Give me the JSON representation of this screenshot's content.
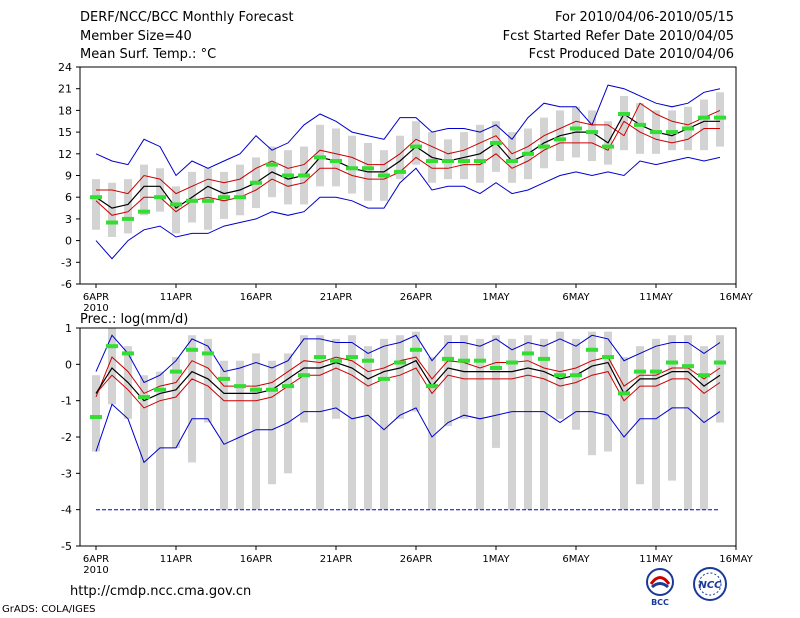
{
  "header": {
    "title": "DERF/NCC/BCC Monthly Forecast",
    "member_size": "Member Size=40",
    "variable": "Mean Surf. Temp.: °C",
    "period": "For 2010/04/06-2010/05/15",
    "started_refer": "Fcst Started Refer Date 2010/04/05",
    "produced": "Fcst Produced Date 2010/04/06"
  },
  "footer": {
    "url": "http://cmdp.ncc.cma.gov.cn",
    "credit": "GrADS: COLA/IGES",
    "logo_left_text": "BCC",
    "logo_right_text": "NCC"
  },
  "colors": {
    "envelope": "#0000cc",
    "spread": "#cc0000",
    "mean": "#000000",
    "median": "#33dd33",
    "bar": "#d3d3d3"
  },
  "chart_data": [
    {
      "type": "line",
      "title": "Mean Surf. Temp.: °C",
      "x_tick_labels": [
        "6APR",
        "11APR",
        "16APR",
        "21APR",
        "26APR",
        "1MAY",
        "6MAY",
        "11MAY",
        "16MAY"
      ],
      "x_tick_days": [
        0,
        5,
        10,
        15,
        20,
        25,
        30,
        35,
        40
      ],
      "year_label": "2010",
      "ylim": [
        -6,
        24
      ],
      "yticks": [
        -6,
        -3,
        0,
        3,
        6,
        9,
        12,
        15,
        18,
        21,
        24
      ],
      "series": [
        {
          "name": "max",
          "values": [
            12,
            11,
            10.5,
            14,
            13,
            9,
            11,
            10,
            11,
            12,
            14.5,
            12.5,
            13.5,
            16,
            17.5,
            16.5,
            15,
            14.5,
            14,
            17,
            17,
            15,
            15.5,
            15.5,
            15,
            16,
            14,
            17,
            19,
            18.5,
            18.5,
            16,
            21.5,
            21,
            20,
            19,
            18.5,
            19,
            20.5,
            21
          ]
        },
        {
          "name": "upper",
          "values": [
            7,
            7,
            6.5,
            9,
            8.5,
            6.5,
            7.5,
            8.5,
            8,
            8.5,
            10,
            11,
            10,
            10.5,
            12.5,
            12,
            11.5,
            10.5,
            10.5,
            12,
            14,
            13,
            12,
            12.5,
            13.5,
            14.5,
            12,
            13,
            14.5,
            15.5,
            16.5,
            16,
            16,
            14.5,
            19,
            17.5,
            16.5,
            16,
            17,
            18
          ]
        },
        {
          "name": "mean",
          "values": [
            6,
            4.5,
            5,
            7.5,
            7.5,
            4.5,
            6,
            7.5,
            6.5,
            7,
            8,
            9.5,
            8.5,
            9,
            11.5,
            11,
            10,
            9.5,
            9.5,
            11,
            13,
            11.5,
            11,
            11.5,
            12,
            13.5,
            11,
            12,
            13.5,
            14.5,
            15,
            15,
            13.5,
            17.5,
            16,
            15,
            14.5,
            15.5,
            16.5,
            16.5
          ]
        },
        {
          "name": "lower",
          "values": [
            5.5,
            3.5,
            4,
            6,
            6,
            4,
            5.5,
            6,
            5.5,
            6,
            7,
            8.5,
            7.5,
            8,
            10,
            10,
            9,
            8.5,
            8.5,
            9.5,
            11.5,
            10,
            10,
            10.5,
            10.5,
            12,
            10,
            11,
            12.5,
            13.5,
            13.5,
            13.5,
            12.5,
            16.5,
            15,
            14,
            13.5,
            14,
            15.5,
            15.5
          ]
        },
        {
          "name": "min",
          "values": [
            0,
            -2.5,
            0,
            1.5,
            2,
            0.5,
            1,
            1,
            2,
            2.5,
            3,
            4,
            3.5,
            4,
            6,
            6,
            5.5,
            4.5,
            4.5,
            8,
            10,
            7,
            7.5,
            7.5,
            6.5,
            8,
            6.5,
            7,
            8,
            9,
            9.5,
            9,
            9.5,
            9,
            11,
            10.5,
            11,
            11.5,
            11,
            11.5
          ]
        },
        {
          "name": "median",
          "values": [
            6,
            2.5,
            3,
            4,
            6,
            5,
            5.5,
            5.5,
            6,
            6,
            8,
            10.5,
            9,
            9,
            11.5,
            11,
            10,
            10,
            9,
            9.5,
            13,
            11,
            11,
            11,
            11,
            13.5,
            11,
            12,
            13,
            14,
            15.5,
            15,
            13,
            17.5,
            16,
            15,
            15,
            15.5,
            17,
            17
          ]
        },
        {
          "name": "bar_top",
          "values": [
            8.5,
            8,
            8.5,
            10.5,
            10,
            7.5,
            9.5,
            10,
            9.5,
            10.5,
            11.5,
            13,
            12.5,
            13,
            16,
            15.5,
            14.5,
            13.5,
            12.5,
            14.5,
            16.5,
            15,
            14,
            15,
            16,
            16.5,
            15,
            15.5,
            17,
            18,
            18.5,
            18,
            16.5,
            20,
            19,
            18,
            18,
            18.5,
            19.5,
            20.5
          ]
        },
        {
          "name": "bar_bottom",
          "values": [
            1.5,
            0.5,
            1,
            3.5,
            4,
            1,
            2.5,
            1.5,
            3,
            3.5,
            4.5,
            6,
            5,
            5,
            7.5,
            7.5,
            6.5,
            5.5,
            5.5,
            8.5,
            10.5,
            8,
            8.5,
            8.5,
            8,
            9.5,
            8,
            8.5,
            10,
            11,
            11.5,
            11,
            10.5,
            12.5,
            12,
            12,
            12.5,
            12.5,
            12.5,
            13
          ]
        }
      ]
    },
    {
      "type": "line",
      "title": "Prec.: log(mm/d)",
      "x_tick_labels": [
        "6APR",
        "11APR",
        "16APR",
        "21APR",
        "26APR",
        "1MAY",
        "6MAY",
        "11MAY",
        "16MAY"
      ],
      "x_tick_days": [
        0,
        5,
        10,
        15,
        20,
        25,
        30,
        35,
        40
      ],
      "year_label": "2010",
      "ylim": [
        -5,
        1
      ],
      "yticks": [
        -5,
        -4,
        -3,
        -2,
        -1,
        0,
        1
      ],
      "series": [
        {
          "name": "max",
          "values": [
            -0.2,
            0.8,
            0.3,
            -0.5,
            -0.3,
            0.1,
            0.7,
            0.5,
            -0.2,
            -0.1,
            0.05,
            -0.1,
            0.1,
            0.7,
            0.7,
            0.6,
            0.6,
            0.3,
            0.5,
            0.6,
            0.8,
            0.1,
            0.6,
            0.6,
            0.5,
            0.7,
            0.4,
            0.6,
            0.5,
            0.7,
            0.5,
            0.8,
            0.7,
            0.1,
            0.3,
            0.5,
            0.6,
            0.6,
            0.3,
            0.6
          ]
        },
        {
          "name": "upper",
          "values": [
            -0.9,
            0.2,
            -0.2,
            -0.8,
            -0.6,
            -0.5,
            0.1,
            -0.1,
            -0.6,
            -0.6,
            -0.6,
            -0.5,
            -0.2,
            0.1,
            0.05,
            0.2,
            0.1,
            -0.2,
            -0.1,
            0.1,
            0.2,
            -0.4,
            0.1,
            0.05,
            -0.1,
            0.05,
            0.05,
            0.1,
            -0.1,
            -0.2,
            -0.1,
            0.1,
            0.2,
            -0.6,
            -0.3,
            -0.3,
            -0.1,
            -0.1,
            -0.4,
            -0.1
          ]
        },
        {
          "name": "mean",
          "values": [
            -0.8,
            -0.1,
            -0.5,
            -1.0,
            -0.8,
            -0.7,
            -0.2,
            -0.4,
            -0.8,
            -0.8,
            -0.8,
            -0.7,
            -0.4,
            -0.1,
            -0.1,
            0.05,
            -0.1,
            -0.4,
            -0.2,
            -0.1,
            0.1,
            -0.6,
            -0.1,
            -0.2,
            -0.2,
            -0.2,
            -0.2,
            -0.1,
            -0.2,
            -0.4,
            -0.3,
            -0.05,
            0.05,
            -0.8,
            -0.4,
            -0.4,
            -0.2,
            -0.2,
            -0.6,
            -0.3
          ]
        },
        {
          "name": "lower",
          "values": [
            -0.8,
            -0.3,
            -0.7,
            -1.2,
            -1.0,
            -0.9,
            -0.4,
            -0.6,
            -1.0,
            -1.0,
            -1.0,
            -0.9,
            -0.6,
            -0.3,
            -0.3,
            -0.1,
            -0.3,
            -0.6,
            -0.4,
            -0.3,
            -0.1,
            -0.8,
            -0.3,
            -0.4,
            -0.4,
            -0.4,
            -0.4,
            -0.3,
            -0.4,
            -0.6,
            -0.5,
            -0.3,
            -0.2,
            -1.0,
            -0.6,
            -0.6,
            -0.4,
            -0.4,
            -0.8,
            -0.5
          ]
        },
        {
          "name": "min",
          "values": [
            -2.4,
            -1.1,
            -1.5,
            -2.7,
            -2.3,
            -2.3,
            -1.5,
            -1.5,
            -2.2,
            -2.0,
            -1.8,
            -1.8,
            -1.6,
            -1.3,
            -1.3,
            -1.2,
            -1.5,
            -1.4,
            -1.8,
            -1.4,
            -1.2,
            -2.0,
            -1.6,
            -1.4,
            -1.5,
            -1.4,
            -1.3,
            -1.3,
            -1.3,
            -1.6,
            -1.3,
            -1.3,
            -1.4,
            -2.0,
            -1.5,
            -1.5,
            -1.2,
            -1.2,
            -1.6,
            -1.3
          ]
        },
        {
          "name": "floor",
          "values": [
            -4,
            -4,
            -4,
            -4,
            -4,
            -4,
            -4,
            -4,
            -4,
            -4,
            -4,
            -4,
            -4,
            -4,
            -4,
            -4,
            -4,
            -4,
            -4,
            -4,
            -4,
            -4,
            -4,
            -4,
            -4,
            -4,
            -4,
            -4,
            -4,
            -4,
            -4,
            -4,
            -4,
            -4,
            -4,
            -4,
            -4,
            -4,
            -4,
            -4
          ]
        },
        {
          "name": "median",
          "values": [
            -1.45,
            0.5,
            0.3,
            -0.9,
            -0.7,
            -0.2,
            0.4,
            0.3,
            -0.4,
            -0.6,
            -0.7,
            -0.7,
            -0.6,
            -0.3,
            0.2,
            0.1,
            0.2,
            0.1,
            -0.4,
            0.05,
            0.4,
            -0.6,
            0.15,
            0.1,
            0.1,
            -0.1,
            0.05,
            0.3,
            0.15,
            -0.3,
            -0.3,
            0.4,
            0.2,
            -0.8,
            -0.2,
            -0.2,
            0.05,
            -0.05,
            -0.3,
            0.05
          ]
        },
        {
          "name": "bar_top",
          "values": [
            -0.3,
            1.0,
            0.5,
            -0.3,
            -0.2,
            0.2,
            0.8,
            0.7,
            0.1,
            0.1,
            0.3,
            0.1,
            0.3,
            0.8,
            0.8,
            0.7,
            0.8,
            0.5,
            0.7,
            0.8,
            0.9,
            0.2,
            0.8,
            0.8,
            0.7,
            0.8,
            0.7,
            0.8,
            0.7,
            0.9,
            0.7,
            0.9,
            0.9,
            0.2,
            0.5,
            0.7,
            0.8,
            0.8,
            0.5,
            0.8
          ]
        },
        {
          "name": "bar_bottom",
          "values": [
            -2.4,
            -1.1,
            -1.5,
            -4.0,
            -4.0,
            -2.3,
            -2.7,
            -1.6,
            -4.0,
            -4.0,
            -4.0,
            -3.3,
            -3.0,
            -1.6,
            -4.0,
            -1.5,
            -4.0,
            -4.0,
            -4.0,
            -1.5,
            -1.3,
            -4.0,
            -1.7,
            -1.5,
            -4.0,
            -2.3,
            -4.0,
            -4.0,
            -4.0,
            -1.5,
            -1.8,
            -2.5,
            -2.4,
            -4.0,
            -3.3,
            -4.0,
            -3.2,
            -4.0,
            -4.0,
            -1.6
          ]
        }
      ]
    }
  ]
}
